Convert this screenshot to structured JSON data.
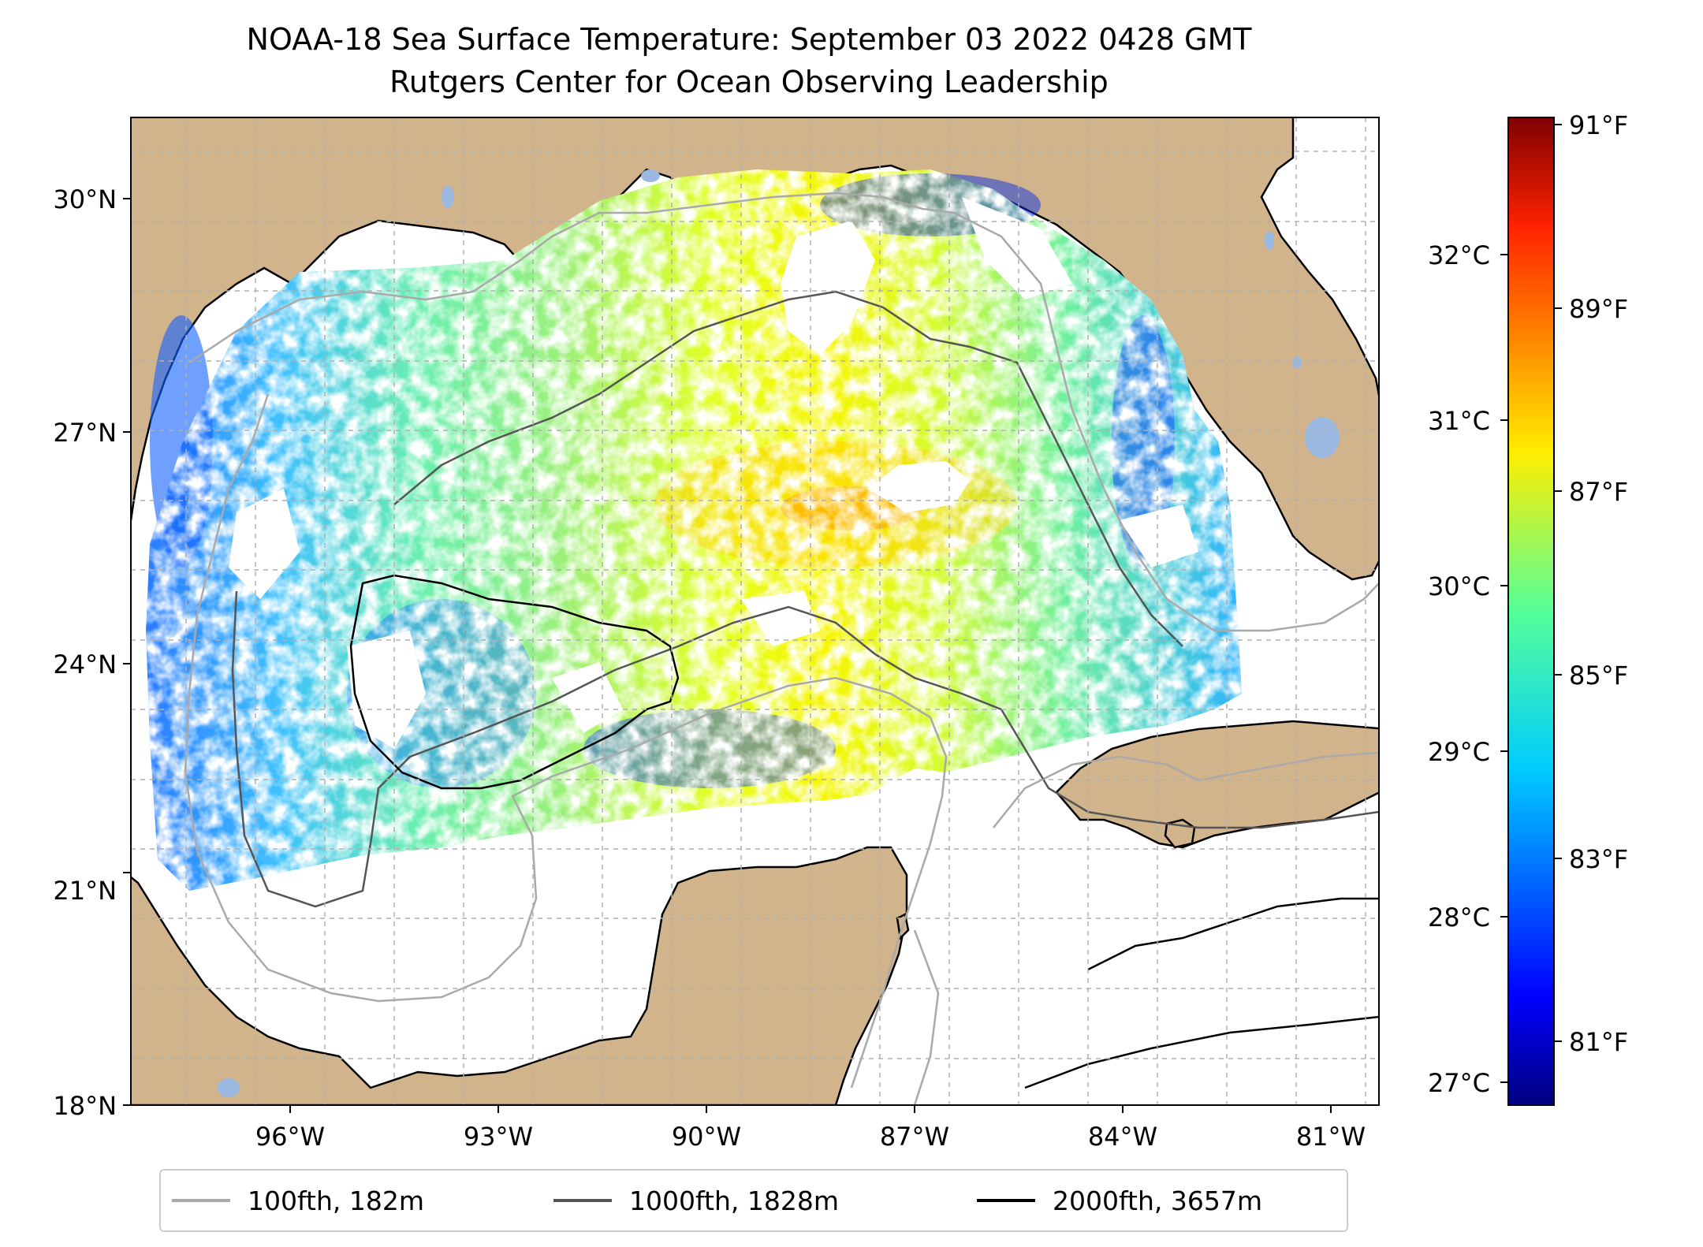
{
  "title": "NOAA-18 Sea Surface Temperature: September 03 2022 0428 GMT",
  "subtitle": "Rutgers Center for Ocean Observing Leadership",
  "map": {
    "lon_range": [
      -98.3,
      -80.3
    ],
    "lat_range": [
      18.0,
      31.0
    ],
    "lon_ticks": [
      "96°W",
      "93°W",
      "90°W",
      "87°W",
      "84°W",
      "81°W"
    ],
    "lat_ticks": [
      "18°N",
      "21°N",
      "24°N",
      "27°N",
      "30°N"
    ],
    "land_color": "#d2b48c",
    "gridlines": true
  },
  "colorbar": {
    "colormap": "jet",
    "fahrenheit_ticks": [
      "91°F",
      "89°F",
      "87°F",
      "85°F",
      "83°F",
      "81°F"
    ],
    "celsius_ticks": [
      "32°C",
      "31°C",
      "30°C",
      "29°C",
      "28°C",
      "27°C"
    ],
    "fahrenheit_range": [
      80.3,
      91.1
    ]
  },
  "legend": {
    "items": [
      {
        "label": "100fth, 182m",
        "color": "#a9a9a9"
      },
      {
        "label": "1000fth, 1828m",
        "color": "#555555"
      },
      {
        "label": "2000fth, 3657m",
        "color": "#000000"
      }
    ]
  }
}
